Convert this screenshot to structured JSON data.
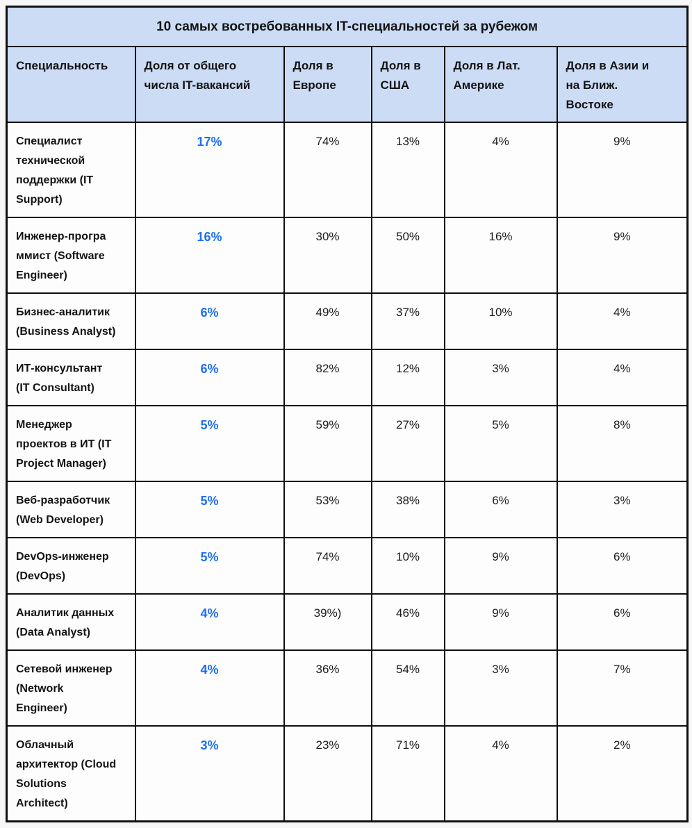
{
  "colors": {
    "header_bg": "#ccdcf5",
    "border": "#0f0f0f",
    "accent_blue": "#1d6ff2",
    "text": "#141414",
    "page_bg": "#f7f7f8",
    "cell_bg": "#fdfdfd"
  },
  "table": {
    "title": "10 самых востребованных IT-специальностей за рубежом",
    "columns": [
      "Специальность",
      "Доля от общего\nчисла IT-вакансий",
      "Доля в\nЕвропе",
      "Доля в\nСША",
      "Доля в Лат.\nАмерике",
      "Доля в Азии и\nна Ближ.\nВостоке"
    ],
    "rows": [
      {
        "specialty": "Специалист\nтехнической\nподдержки (IT\nSupport)",
        "share_total": "17%",
        "europe": "74%",
        "usa": "13%",
        "latin_america": "4%",
        "asia_middle_east": "9%"
      },
      {
        "specialty": "Инженер-програ\nммист (Software\nEngineer)",
        "share_total": "16%",
        "europe": "30%",
        "usa": "50%",
        "latin_america": "16%",
        "asia_middle_east": "9%"
      },
      {
        "specialty": "Бизнес-аналитик\n(Business Analyst)",
        "share_total": "6%",
        "europe": "49%",
        "usa": "37%",
        "latin_america": "10%",
        "asia_middle_east": "4%"
      },
      {
        "specialty": "ИТ-консультант\n(IT Consultant)",
        "share_total": "6%",
        "europe": "82%",
        "usa": "12%",
        "latin_america": "3%",
        "asia_middle_east": "4%"
      },
      {
        "specialty": "Менеджер\nпроектов в ИТ (IT\nProject Manager)",
        "share_total": "5%",
        "europe": "59%",
        "usa": "27%",
        "latin_america": "5%",
        "asia_middle_east": "8%"
      },
      {
        "specialty": "Веб-разработчик\n(Web Developer)",
        "share_total": "5%",
        "europe": "53%",
        "usa": "38%",
        "latin_america": "6%",
        "asia_middle_east": "3%"
      },
      {
        "specialty": "DevOps-инженер\n(DevOps)",
        "share_total": "5%",
        "europe": "74%",
        "usa": "10%",
        "latin_america": "9%",
        "asia_middle_east": "6%"
      },
      {
        "specialty": "Аналитик данных\n(Data Analyst)",
        "share_total": "4%",
        "europe": "39%)",
        "usa": "46%",
        "latin_america": "9%",
        "asia_middle_east": "6%"
      },
      {
        "specialty": "Сетевой инженер\n(Network\nEngineer)",
        "share_total": "4%",
        "europe": "36%",
        "usa": "54%",
        "latin_america": "3%",
        "asia_middle_east": "7%"
      },
      {
        "specialty": "Облачный\nархитектор (Cloud\nSolutions\nArchitect)",
        "share_total": "3%",
        "europe": "23%",
        "usa": "71%",
        "latin_america": "4%",
        "asia_middle_east": "2%"
      }
    ]
  },
  "chart_data": {
    "type": "table",
    "title": "10 самых востребованных IT-специальностей за рубежом",
    "columns": [
      "Специальность",
      "Доля от общего числа IT-вакансий",
      "Доля в Европе",
      "Доля в США",
      "Доля в Лат. Америке",
      "Доля в Азии и на Ближ. Востоке"
    ],
    "rows": [
      [
        "Специалист технической поддержки (IT Support)",
        "17%",
        "74%",
        "13%",
        "4%",
        "9%"
      ],
      [
        "Инженер-программист (Software Engineer)",
        "16%",
        "30%",
        "50%",
        "16%",
        "9%"
      ],
      [
        "Бизнес-аналитик (Business Analyst)",
        "6%",
        "49%",
        "37%",
        "10%",
        "4%"
      ],
      [
        "ИТ-консультант (IT Consultant)",
        "6%",
        "82%",
        "12%",
        "3%",
        "4%"
      ],
      [
        "Менеджер проектов в ИТ (IT Project Manager)",
        "5%",
        "59%",
        "27%",
        "5%",
        "8%"
      ],
      [
        "Веб-разработчик (Web Developer)",
        "5%",
        "53%",
        "38%",
        "6%",
        "3%"
      ],
      [
        "DevOps-инженер (DevOps)",
        "5%",
        "74%",
        "10%",
        "9%",
        "6%"
      ],
      [
        "Аналитик данных (Data Analyst)",
        "4%",
        "39%)",
        "46%",
        "9%",
        "6%"
      ],
      [
        "Сетевой инженер (Network Engineer)",
        "4%",
        "36%",
        "54%",
        "3%",
        "7%"
      ],
      [
        "Облачный архитектор (Cloud Solutions Architect)",
        "3%",
        "23%",
        "71%",
        "4%",
        "2%"
      ]
    ]
  }
}
